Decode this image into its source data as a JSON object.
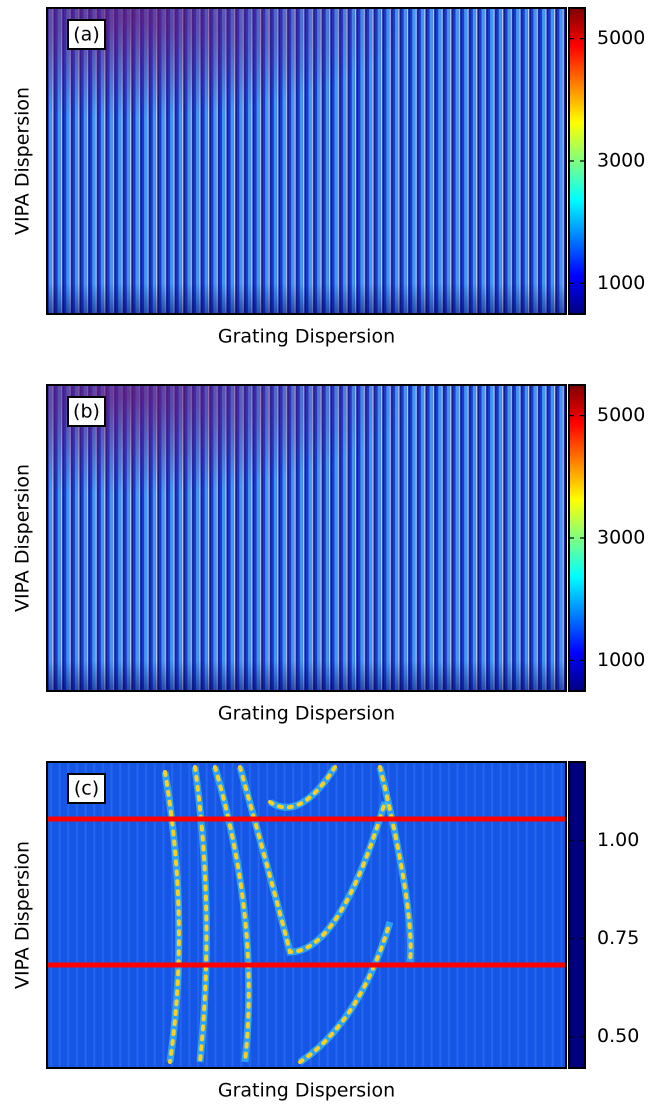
{
  "chart_data": [
    {
      "type": "heatmap",
      "panel_label": "(a)",
      "xlabel": "Grating Dispersion",
      "ylabel": "VIPA Dispersion",
      "colormap": "jet",
      "colormap_reversed": false,
      "clim": [
        500,
        5500
      ],
      "cticks": [
        1000,
        3000,
        5000
      ]
    },
    {
      "type": "heatmap",
      "panel_label": "(b)",
      "xlabel": "Grating Dispersion",
      "ylabel": "VIPA Dispersion",
      "colormap": "jet",
      "colormap_reversed": false,
      "clim": [
        500,
        5500
      ],
      "cticks": [
        1000,
        3000,
        5000
      ]
    },
    {
      "type": "heatmap",
      "panel_label": "(c)",
      "xlabel": "Grating Dispersion",
      "ylabel": "VIPA Dispersion",
      "colormap": "jet",
      "colormap_reversed": true,
      "clim": [
        0.42,
        1.2
      ],
      "cticks": [
        {
          "value": 0.5,
          "label": "0.50"
        },
        {
          "value": 0.75,
          "label": "0.75"
        },
        {
          "value": 1.0,
          "label": "1.00"
        }
      ]
    }
  ]
}
